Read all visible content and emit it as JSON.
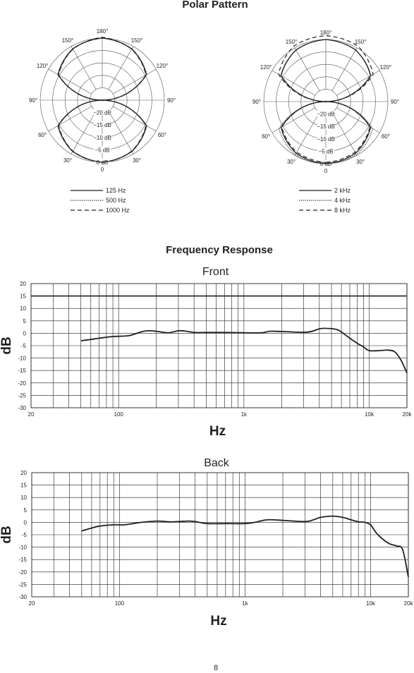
{
  "page": {
    "polar_heading": "Polar Pattern",
    "freq_heading": "Frequency Response",
    "page_number": "8"
  },
  "chart_data": [
    {
      "type": "polar",
      "title": "",
      "ring_labels": [
        "0 dB",
        "−5 dB",
        "−10 dB",
        "−15 dB",
        "−20 dB"
      ],
      "ring_values": [
        0,
        -5,
        -10,
        -15,
        -20
      ],
      "angle_labels": [
        "0",
        "30°",
        "60°",
        "90°",
        "120°",
        "150°",
        "180°",
        "150°",
        "120°",
        "90°",
        "60°",
        "30°"
      ],
      "angles": [
        0,
        30,
        60,
        90,
        120,
        150,
        180,
        210,
        240,
        270,
        300,
        330
      ],
      "series": [
        {
          "name": "125 Hz",
          "style": "solid",
          "angles": [
            0,
            30,
            60,
            90,
            120,
            150,
            180
          ],
          "db": [
            0,
            -1.2,
            -4.5,
            -25,
            -4.5,
            -1.2,
            0
          ]
        },
        {
          "name": "500 Hz",
          "style": "dotted",
          "angles": [
            0,
            30,
            60,
            90,
            120,
            150,
            180
          ],
          "db": [
            0,
            -1.1,
            -4.3,
            -25,
            -4.3,
            -1.1,
            0
          ]
        },
        {
          "name": "1000 Hz",
          "style": "dashed",
          "angles": [
            0,
            30,
            60,
            90,
            120,
            150,
            180
          ],
          "db": [
            0,
            -1.3,
            -4.7,
            -25,
            -4.7,
            -1.3,
            0.3
          ]
        }
      ]
    },
    {
      "type": "polar",
      "title": "",
      "ring_labels": [
        "0 dB",
        "−5 dB",
        "−10 dB",
        "−15 dB",
        "−20 dB"
      ],
      "ring_values": [
        0,
        -5,
        -10,
        -15,
        -20
      ],
      "angle_labels": [
        "0",
        "30°",
        "60°",
        "90°",
        "120°",
        "150°",
        "180°",
        "150°",
        "120°",
        "90°",
        "60°",
        "30°"
      ],
      "angles": [
        0,
        30,
        60,
        90,
        120,
        150,
        180,
        210,
        240,
        270,
        300,
        330
      ],
      "series": [
        {
          "name": "2 kHz",
          "style": "solid",
          "angles": [
            0,
            30,
            60,
            90,
            120,
            150,
            180
          ],
          "db": [
            0,
            -1.0,
            -4.2,
            -25,
            -4.2,
            -1.0,
            0
          ]
        },
        {
          "name": "4 kHz",
          "style": "dotted",
          "angles": [
            0,
            30,
            60,
            90,
            120,
            150,
            180
          ],
          "db": [
            0,
            -0.3,
            -3.2,
            -25,
            -4.0,
            -1.0,
            0
          ]
        },
        {
          "name": "8 kHz",
          "style": "dashed",
          "angles": [
            0,
            30,
            60,
            90,
            120,
            150,
            180
          ],
          "db": [
            -0.5,
            -1.5,
            -4.5,
            -25,
            -3.0,
            0.8,
            1.5
          ]
        }
      ]
    },
    {
      "type": "line",
      "title": "Front",
      "xlabel": "Hz",
      "ylabel": "dB",
      "xscale": "log",
      "xlim": [
        20,
        20000
      ],
      "ylim": [
        -30,
        20
      ],
      "xtick_values": [
        20,
        100,
        1000,
        10000,
        20000
      ],
      "xtick_labels": [
        "20",
        "100",
        "1k",
        "10k",
        "20k"
      ],
      "ytick_values": [
        20,
        15,
        10,
        5,
        0,
        -5,
        -10,
        -15,
        -20,
        -25,
        -30
      ],
      "ytick_labels": [
        "20",
        "15",
        "10",
        "5",
        "0",
        "-5",
        "-10",
        "-15",
        "-20",
        "-25",
        "-30"
      ],
      "reference_line_db": 15,
      "series": [
        {
          "x": [
            50,
            60,
            70,
            90,
            120,
            150,
            170,
            200,
            250,
            300,
            350,
            400,
            500,
            700,
            1000,
            1400,
            1600,
            2000,
            3000,
            3500,
            4000,
            4500,
            5500,
            6000,
            7000,
            8000,
            9000,
            10000,
            12000,
            14000,
            16000,
            18000,
            20000
          ],
          "y": [
            -3,
            -2.5,
            -2,
            -1.3,
            -1,
            0.5,
            1,
            0.8,
            0.2,
            1,
            0.8,
            0.3,
            0.3,
            0.3,
            0.2,
            0.2,
            0.8,
            0.7,
            0.4,
            0.8,
            1.8,
            2,
            1.5,
            0.5,
            -2,
            -4,
            -5.5,
            -7,
            -7,
            -6.8,
            -7.5,
            -11,
            -16
          ]
        }
      ]
    },
    {
      "type": "line",
      "title": "Back",
      "xlabel": "Hz",
      "ylabel": "dB",
      "xscale": "log",
      "xlim": [
        20,
        20000
      ],
      "ylim": [
        -30,
        20
      ],
      "xtick_values": [
        20,
        100,
        1000,
        10000,
        20000
      ],
      "xtick_labels": [
        "20",
        "100",
        "1k",
        "10k",
        "20k"
      ],
      "ytick_values": [
        20,
        15,
        10,
        5,
        0,
        -5,
        -10,
        -15,
        -20,
        -25,
        -30
      ],
      "ytick_labels": [
        "20",
        "15",
        "10",
        "5",
        "0",
        "-5",
        "-10",
        "-15",
        "-20",
        "-25",
        "-30"
      ],
      "series": [
        {
          "x": [
            50,
            60,
            70,
            90,
            110,
            150,
            200,
            250,
            300,
            350,
            400,
            500,
            700,
            1000,
            1200,
            1500,
            2000,
            3000,
            3500,
            4000,
            5000,
            6000,
            7000,
            8000,
            9000,
            10000,
            11000,
            12000,
            14000,
            16000,
            18000,
            20000
          ],
          "y": [
            -3.5,
            -2.3,
            -1.5,
            -1,
            -1,
            0,
            0.5,
            0.2,
            0.3,
            0.5,
            0.3,
            -0.5,
            -0.5,
            -0.5,
            0,
            1,
            0.8,
            0.3,
            1,
            2,
            2.5,
            2,
            1,
            0.2,
            0,
            -1,
            -4,
            -6,
            -8.5,
            -9.5,
            -11,
            -22
          ]
        }
      ]
    }
  ]
}
